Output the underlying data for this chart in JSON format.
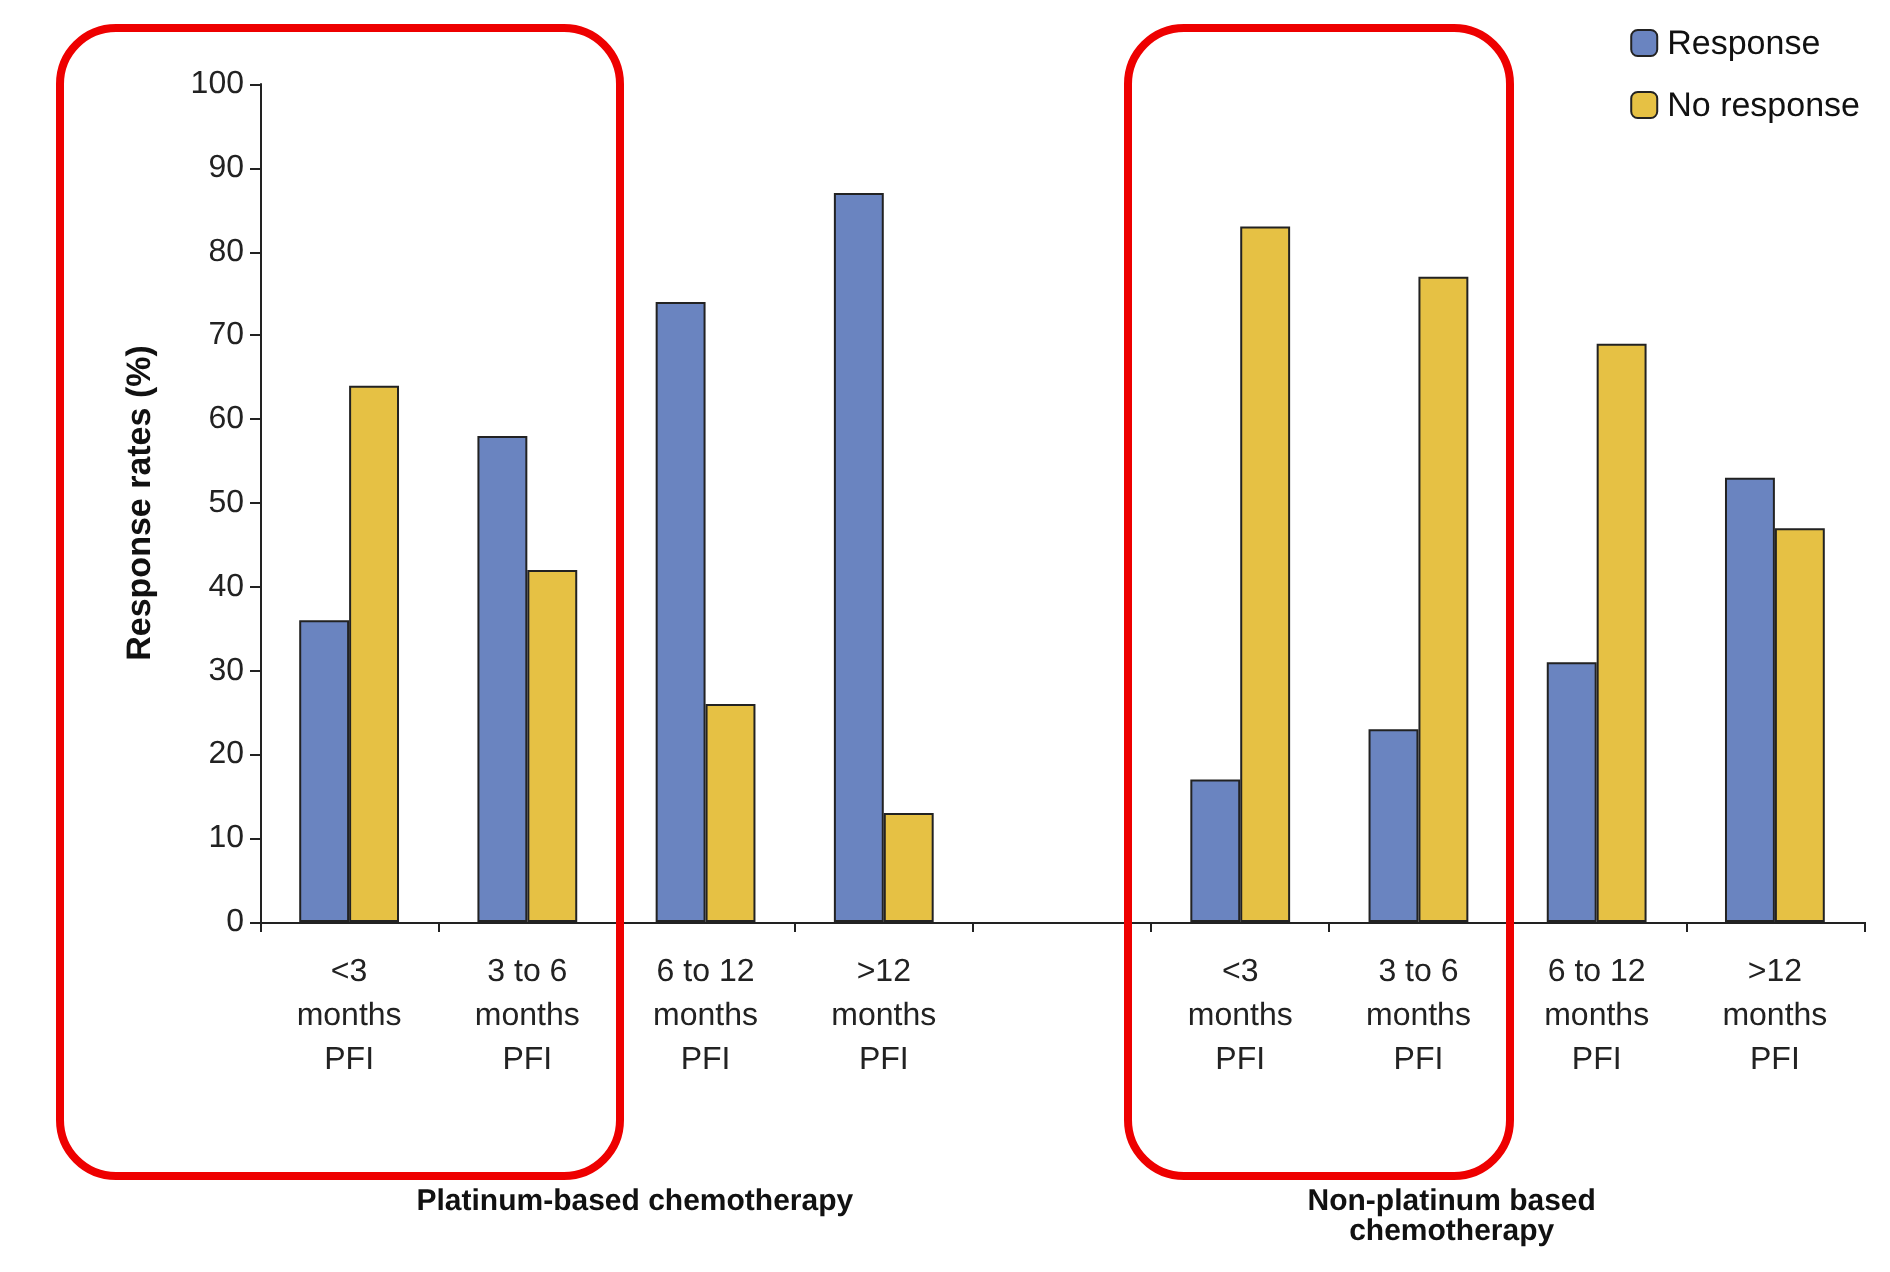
{
  "chart_data": {
    "type": "bar",
    "ylabel": "Response rates (%)",
    "categories": [
      "<3\nmonths\nPFI",
      "3 to 6\nmonths\nPFI",
      "6 to 12\nmonths\nPFI",
      ">12\nmonths\nPFI",
      null,
      "<3\nmonths\nPFI",
      "3 to 6\nmonths\nPFI",
      "6 to 12\nmonths\nPFI",
      ">12\nmonths\nPFI"
    ],
    "series": [
      {
        "name": "Response",
        "color": "#6a84c0",
        "values": [
          36,
          58,
          74,
          87,
          null,
          17,
          23,
          31,
          53
        ]
      },
      {
        "name": "No response",
        "color": "#e6c144",
        "values": [
          64,
          42,
          26,
          13,
          null,
          83,
          77,
          69,
          47
        ]
      }
    ],
    "ylim": [
      0,
      100
    ],
    "yticks": [
      0,
      10,
      20,
      30,
      40,
      50,
      60,
      70,
      80,
      90,
      100
    ],
    "grid": false,
    "legend": "top right",
    "annotations": [
      "Platinum-based chemotherapy",
      "Non-platinum based\nchemotherapy"
    ]
  }
}
